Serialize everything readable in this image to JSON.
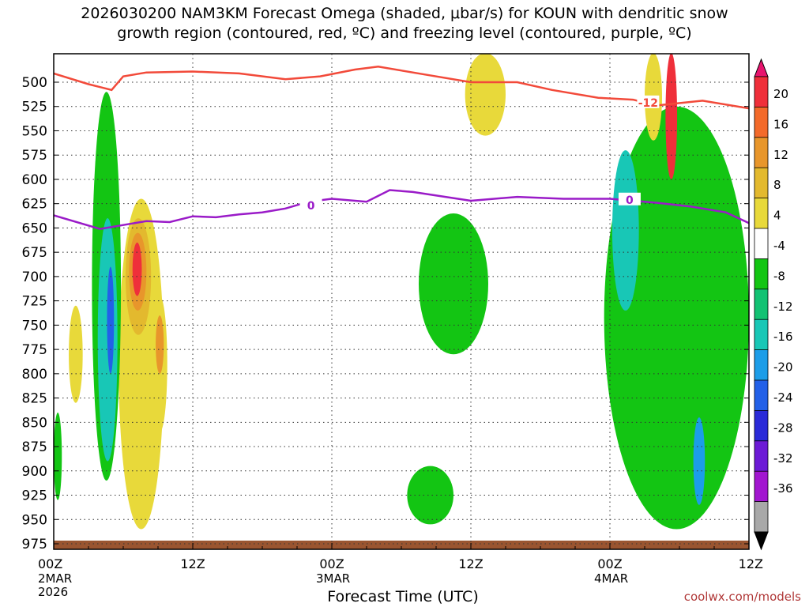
{
  "chart_data": {
    "type": "heatmap",
    "title_line1": "2026030200 NAM3KM Forecast Omega (shaded, μbar/s) for KOUN with dendritic snow",
    "title_line2": "growth region (contoured, red, ºC) and freezing level (contoured, purple, ºC)",
    "xlabel": "Forecast Time (UTC)",
    "ylabel": "",
    "credit": "coolwx.com/models",
    "y_axis": {
      "unit": "hPa",
      "range": [
        985,
        470
      ],
      "ticks": [
        500,
        525,
        550,
        575,
        600,
        625,
        650,
        675,
        700,
        725,
        750,
        775,
        800,
        825,
        850,
        875,
        900,
        925,
        950,
        975
      ]
    },
    "x_axis": {
      "unit": "forecast hour",
      "range": [
        0,
        60
      ],
      "ticks": [
        {
          "hour": 0,
          "label": "00Z",
          "date": "2MAR",
          "year": "2026"
        },
        {
          "hour": 12,
          "label": "12Z",
          "date": "",
          "year": ""
        },
        {
          "hour": 24,
          "label": "00Z",
          "date": "3MAR",
          "year": ""
        },
        {
          "hour": 36,
          "label": "12Z",
          "date": "",
          "year": ""
        },
        {
          "hour": 48,
          "label": "00Z",
          "date": "4MAR",
          "year": ""
        },
        {
          "hour": 60,
          "label": "12Z",
          "date": "",
          "year": ""
        }
      ]
    },
    "grid": true,
    "colorbar": {
      "placement": "right",
      "levels": [
        20,
        16,
        12,
        8,
        4,
        -4,
        -8,
        -12,
        -16,
        -20,
        -24,
        -28,
        -32,
        -36
      ],
      "colors": [
        "#e8146e",
        "#ef2f3a",
        "#f36a2a",
        "#e8962b",
        "#e3b92e",
        "#e8d93a",
        "#ffffff",
        "#13c513",
        "#12c273",
        "#18c7b6",
        "#1c9de8",
        "#2260e8",
        "#2a2ad8",
        "#6c1ad6",
        "#a216d0",
        "#a8a8a8",
        "#000000"
      ]
    },
    "contours": [
      {
        "name": "-12",
        "color": "#f24a3a",
        "points": [
          [
            0,
            491
          ],
          [
            3,
            502
          ],
          [
            5,
            508
          ],
          [
            6,
            494
          ],
          [
            8,
            490
          ],
          [
            12,
            489
          ],
          [
            16,
            491
          ],
          [
            20,
            497
          ],
          [
            23,
            494
          ],
          [
            26,
            487
          ],
          [
            28,
            484
          ],
          [
            32,
            492
          ],
          [
            36,
            500
          ],
          [
            40,
            500
          ],
          [
            43,
            508
          ],
          [
            47,
            516
          ],
          [
            50,
            518
          ],
          [
            52,
            524
          ],
          [
            56,
            519
          ],
          [
            60,
            527
          ]
        ]
      },
      {
        "name": "0",
        "color": "#9a1bc8",
        "points": [
          [
            0,
            637
          ],
          [
            4,
            651
          ],
          [
            6,
            647
          ],
          [
            8,
            643
          ],
          [
            10,
            644
          ],
          [
            12,
            638
          ],
          [
            14,
            639
          ],
          [
            16,
            636
          ],
          [
            18,
            634
          ],
          [
            20,
            630
          ],
          [
            22,
            623
          ],
          [
            24,
            620
          ],
          [
            27,
            623
          ],
          [
            29,
            611
          ],
          [
            31,
            613
          ],
          [
            36,
            622
          ],
          [
            40,
            618
          ],
          [
            44,
            620
          ],
          [
            48,
            620
          ],
          [
            52,
            624
          ],
          [
            55,
            628
          ],
          [
            58,
            634
          ],
          [
            60,
            645
          ]
        ]
      }
    ],
    "shaded_regions": [
      {
        "level": 4,
        "hours": [
          5.6,
          9.5
        ],
        "p": [
          620,
          960
        ]
      },
      {
        "level": 8,
        "hours": [
          6.2,
          8.4
        ],
        "p": [
          640,
          760
        ]
      },
      {
        "level": 12,
        "hours": [
          6.5,
          8.0
        ],
        "p": [
          655,
          735
        ]
      },
      {
        "level": 20,
        "hours": [
          6.8,
          7.6
        ],
        "p": [
          665,
          720
        ]
      },
      {
        "level": 4,
        "hours": [
          8.5,
          9.8
        ],
        "p": [
          720,
          860
        ]
      },
      {
        "level": 12,
        "hours": [
          8.8,
          9.5
        ],
        "p": [
          740,
          800
        ]
      },
      {
        "level": 4,
        "hours": [
          1.3,
          2.5
        ],
        "p": [
          730,
          830
        ]
      },
      {
        "level": -4,
        "hours": [
          3.3,
          5.8
        ],
        "p": [
          510,
          910
        ]
      },
      {
        "level": -12,
        "hours": [
          3.8,
          5.5
        ],
        "p": [
          640,
          890
        ]
      },
      {
        "level": -20,
        "hours": [
          4.6,
          5.2
        ],
        "p": [
          690,
          800
        ]
      },
      {
        "level": -4,
        "hours": [
          31.5,
          37.5
        ],
        "p": [
          635,
          780
        ]
      },
      {
        "level": -4,
        "hours": [
          30.5,
          34.5
        ],
        "p": [
          895,
          955
        ]
      },
      {
        "level": 4,
        "hours": [
          35.5,
          39.0
        ],
        "p": [
          470,
          555
        ]
      },
      {
        "level": -4,
        "hours": [
          47.5,
          60.0
        ],
        "p": [
          525,
          960
        ]
      },
      {
        "level": -12,
        "hours": [
          48.2,
          50.5
        ],
        "p": [
          570,
          735
        ]
      },
      {
        "level": 20,
        "hours": [
          52.8,
          53.8
        ],
        "p": [
          470,
          600
        ]
      },
      {
        "level": 4,
        "hours": [
          51.0,
          52.5
        ],
        "p": [
          470,
          560
        ]
      },
      {
        "level": -16,
        "hours": [
          55.2,
          56.2
        ],
        "p": [
          845,
          935
        ]
      },
      {
        "level": -4,
        "hours": [
          0,
          0.7
        ],
        "p": [
          840,
          930
        ]
      }
    ],
    "ground": {
      "color": "#9a5530",
      "p_top": 975
    }
  }
}
